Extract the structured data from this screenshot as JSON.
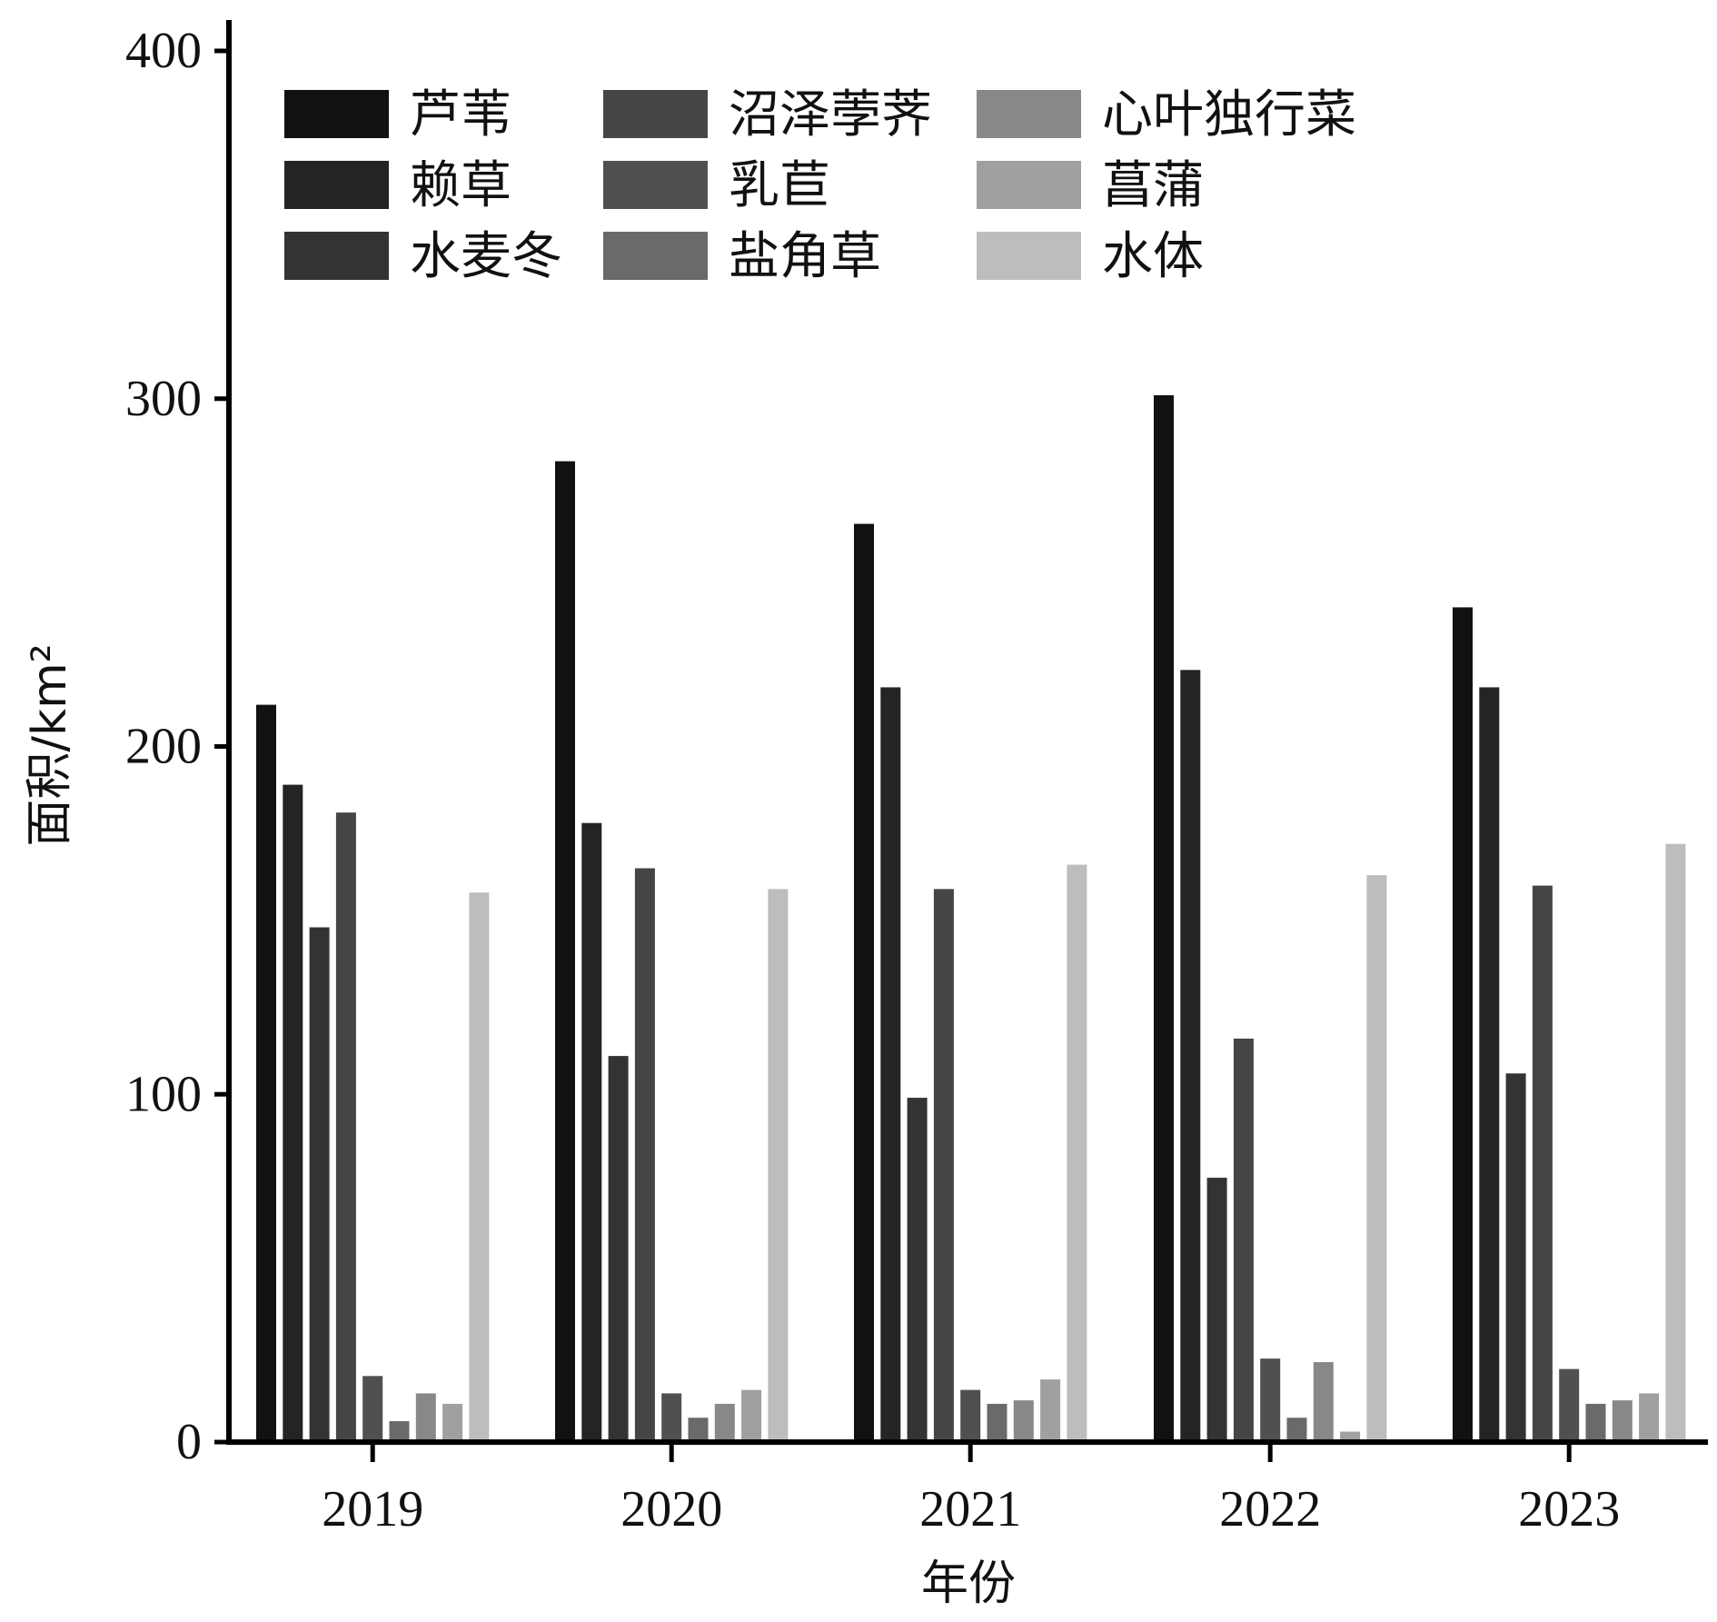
{
  "chart_data": {
    "type": "bar",
    "xlabel": "年份",
    "ylabel": "面积/km²",
    "ylim": [
      0,
      400
    ],
    "yticks": [
      0,
      100,
      200,
      300,
      400
    ],
    "categories": [
      "2019",
      "2020",
      "2021",
      "2022",
      "2023"
    ],
    "legend_position": "top-left, 3 rows x 3 columns",
    "grid": false,
    "series": [
      {
        "name": "芦苇",
        "color": "#111111",
        "values": [
          212,
          282,
          264,
          301,
          240
        ]
      },
      {
        "name": "赖草",
        "color": "#242424",
        "values": [
          189,
          178,
          217,
          222,
          217
        ]
      },
      {
        "name": "水麦冬",
        "color": "#333333",
        "values": [
          148,
          111,
          99,
          76,
          106
        ]
      },
      {
        "name": "沼泽荸荠",
        "color": "#454545",
        "values": [
          181,
          165,
          159,
          116,
          160
        ]
      },
      {
        "name": "乳苣",
        "color": "#505050",
        "values": [
          19,
          14,
          15,
          24,
          21
        ]
      },
      {
        "name": "盐角草",
        "color": "#6a6a6a",
        "values": [
          6,
          7,
          11,
          7,
          11
        ]
      },
      {
        "name": "心叶独行菜",
        "color": "#888888",
        "values": [
          14,
          11,
          12,
          23,
          12
        ]
      },
      {
        "name": "菖蒲",
        "color": "#a0a0a0",
        "values": [
          11,
          15,
          18,
          3,
          14
        ]
      },
      {
        "name": "水体",
        "color": "#bdbdbd",
        "values": [
          158,
          159,
          166,
          163,
          172
        ]
      }
    ]
  }
}
